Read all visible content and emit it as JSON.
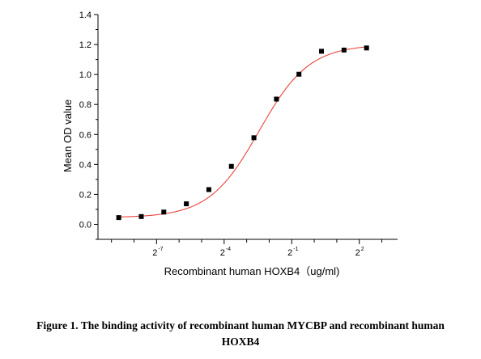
{
  "chart_data": {
    "type": "scatter",
    "title": "",
    "xlabel": "Recombinant human HOXB4（ug/ml)",
    "ylabel": "Mean OD value",
    "x_scale": "log2",
    "x_ticks": [
      {
        "label": "2",
        "exponent": "-7"
      },
      {
        "label": "2",
        "exponent": "-4"
      },
      {
        "label": "2",
        "exponent": "-1"
      },
      {
        "label": "2",
        "exponent": "2"
      }
    ],
    "y_ticks": [
      "0.0",
      "0.2",
      "0.4",
      "0.6",
      "0.8",
      "1.0",
      "1.2",
      "1.4"
    ],
    "ylim": [
      -0.1,
      1.4
    ],
    "xlim_log2": [
      -9.6,
      3.7
    ],
    "grid": false,
    "legend": "none",
    "colors": {
      "points": "#000000",
      "fit": "#e8443c"
    },
    "series": [
      {
        "marker": "square",
        "x": [
          0.00244140625,
          0.0048828125,
          0.009765625,
          0.01953125,
          0.0390625,
          0.078125,
          0.15625,
          0.3125,
          0.625,
          1.25,
          2.5,
          5
        ],
        "y": [
          0.045,
          0.052,
          0.082,
          0.137,
          0.232,
          0.387,
          0.578,
          0.836,
          1.002,
          1.155,
          1.163,
          1.177
        ]
      }
    ],
    "fit": {
      "model": "4PL",
      "bottom": 0.045,
      "top": 1.2,
      "log2_ec50": -2.45,
      "hill_slope": 1.3
    }
  },
  "caption": {
    "line1": "Figure 1. The binding activity of recombinant human MYCBP and recombinant human",
    "line2": "HOXB4"
  }
}
